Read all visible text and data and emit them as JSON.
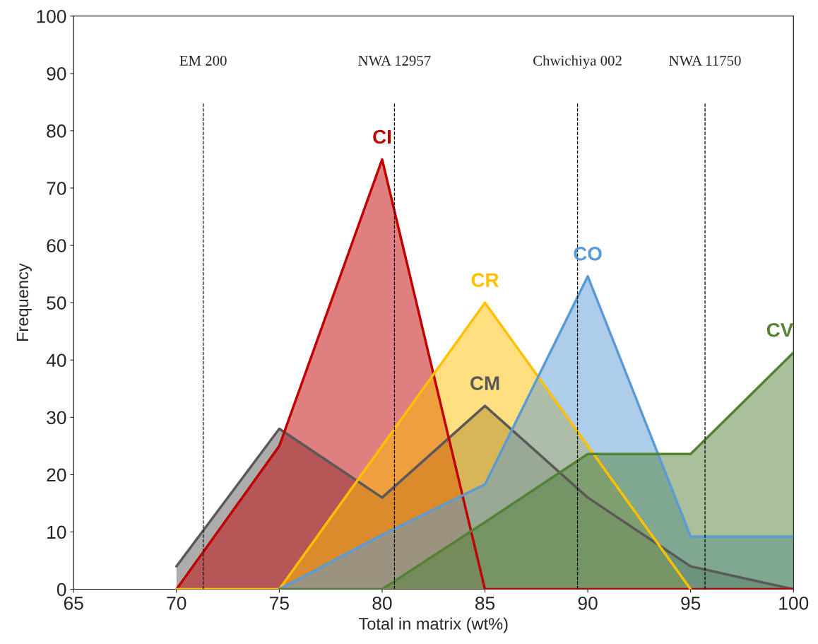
{
  "chart_data": {
    "type": "area",
    "xlabel": "Total in matrix (wt%)",
    "ylabel": "Frequency",
    "x": [
      70,
      75,
      80,
      85,
      90,
      95,
      100
    ],
    "series": [
      {
        "name": "CM",
        "color": "#595959",
        "values": [
          4,
          28,
          16,
          32,
          16,
          4,
          0
        ]
      },
      {
        "name": "CI",
        "color": "#c00000",
        "values": [
          0,
          25,
          75,
          0,
          0,
          0,
          0
        ]
      },
      {
        "name": "CR",
        "color": "#ffc000",
        "values": [
          0,
          0,
          25,
          50,
          25,
          0,
          null
        ]
      },
      {
        "name": "CO",
        "color": "#5b9bd5",
        "values": [
          null,
          0,
          9.5,
          18.3,
          54.6,
          9.2,
          9.2
        ]
      },
      {
        "name": "CV",
        "color": "#548235",
        "values": [
          null,
          0,
          0,
          11.7,
          23.6,
          23.6,
          41.3
        ]
      }
    ],
    "xlim": [
      65,
      100
    ],
    "ylim": [
      0,
      100
    ],
    "xticks": [
      65,
      70,
      75,
      80,
      85,
      90,
      95,
      100
    ],
    "yticks": [
      0,
      10,
      20,
      30,
      40,
      50,
      60,
      70,
      80,
      90,
      100
    ],
    "grid": false,
    "legend": false,
    "ref_lines": [
      {
        "axis": "x",
        "value": 71.3,
        "label": "EM 200",
        "color": "#000000",
        "line_style": "dashed"
      },
      {
        "axis": "x",
        "value": 80.6,
        "label": "NWA 12957",
        "color": "#000000",
        "line_style": "dashed"
      },
      {
        "axis": "x",
        "value": 89.5,
        "label": "Chwichiya 002",
        "color": "#000000",
        "line_style": "dashed"
      },
      {
        "axis": "x",
        "value": 95.7,
        "label": "NWA 11750",
        "color": "#000000",
        "line_style": "dashed"
      }
    ]
  }
}
